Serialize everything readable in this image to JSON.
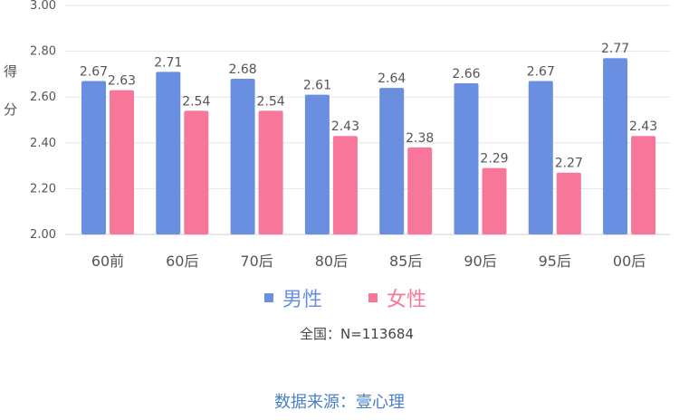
{
  "chart_data": {
    "type": "bar",
    "categories": [
      "60前",
      "60后",
      "70后",
      "80后",
      "85后",
      "90后",
      "95后",
      "00后"
    ],
    "series": [
      {
        "name": "男性",
        "color": "#6a8fe0",
        "values": [
          2.67,
          2.71,
          2.68,
          2.61,
          2.64,
          2.66,
          2.67,
          2.77
        ],
        "labels": [
          "2.67",
          "2.71",
          "2.68",
          "2.61",
          "2.64",
          "2.66",
          "2.67",
          "2.77"
        ]
      },
      {
        "name": "女性",
        "color": "#f7779a",
        "values": [
          2.63,
          2.54,
          2.54,
          2.43,
          2.38,
          2.29,
          2.27,
          2.43
        ],
        "labels": [
          "2.63",
          "2.54",
          "2.54",
          "2.43",
          "2.38",
          "2.29",
          "2.27",
          "2.43"
        ]
      }
    ],
    "ylabel": "得分",
    "ylim": [
      2.0,
      3.0
    ],
    "yticks": [
      "2.00",
      "2.20",
      "2.40",
      "2.60",
      "2.80",
      "3.00"
    ],
    "grid": true,
    "legend_position": "bottom-center"
  },
  "note": "全国：N=113684",
  "source": "数据来源：壹心理"
}
